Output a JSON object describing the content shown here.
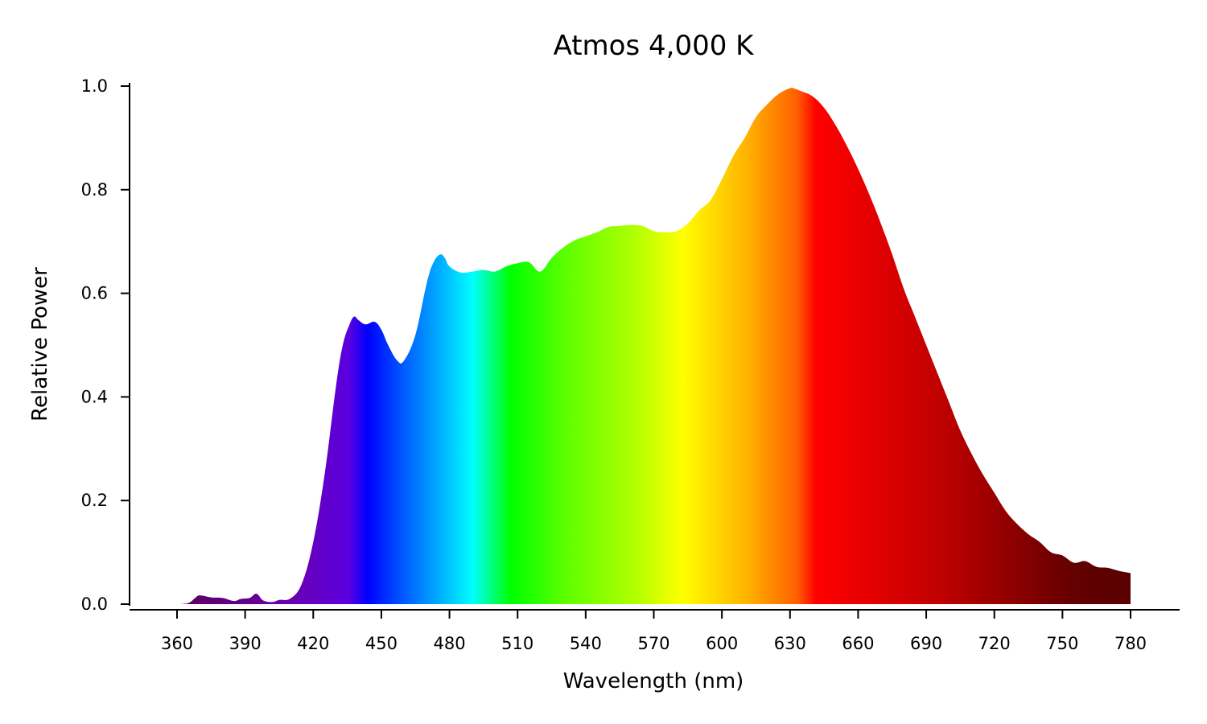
{
  "chart_data": {
    "type": "area",
    "title": "Atmos 4,000 K",
    "xlabel": "Wavelength (nm)",
    "ylabel": "Relative Power",
    "xlim": [
      346,
      798
    ],
    "ylim": [
      0,
      1.0
    ],
    "x_ticks": [
      360,
      390,
      420,
      450,
      480,
      510,
      540,
      570,
      600,
      630,
      660,
      690,
      720,
      750,
      780
    ],
    "x_tick_labels": [
      "360",
      "390",
      "420",
      "450",
      "480",
      "510",
      "540",
      "570",
      "600",
      "630",
      "660",
      "690",
      "720",
      "750",
      "780"
    ],
    "y_ticks": [
      0.0,
      0.2,
      0.4,
      0.6,
      0.8,
      1.0
    ],
    "y_tick_labels": [
      "0.0",
      "0.2",
      "0.4",
      "0.6",
      "0.8",
      "1.0"
    ],
    "grid": false,
    "fill": "visible-spectrum gradient (violet to dark red)",
    "series": [
      {
        "x": [
          360,
          365,
          368,
          370,
          375,
          380,
          385,
          388,
          392,
          395,
          398,
          402,
          405,
          410,
          415,
          420,
          425,
          430,
          433,
          436,
          438,
          440,
          443,
          447,
          450,
          453,
          457,
          460,
          465,
          470,
          473,
          476,
          478,
          480,
          485,
          490,
          495,
          500,
          505,
          510,
          515,
          520,
          525,
          530,
          535,
          540,
          545,
          550,
          555,
          560,
          565,
          570,
          575,
          580,
          585,
          590,
          595,
          600,
          605,
          610,
          615,
          620,
          625,
          630,
          632,
          635,
          640,
          645,
          650,
          655,
          660,
          665,
          670,
          675,
          680,
          685,
          690,
          695,
          700,
          705,
          710,
          715,
          720,
          725,
          730,
          735,
          740,
          745,
          750,
          755,
          760,
          765,
          770,
          775,
          780
        ],
        "y": [
          0.0,
          0.002,
          0.012,
          0.017,
          0.013,
          0.012,
          0.006,
          0.01,
          0.012,
          0.02,
          0.007,
          0.004,
          0.008,
          0.011,
          0.04,
          0.12,
          0.25,
          0.42,
          0.5,
          0.54,
          0.555,
          0.548,
          0.54,
          0.545,
          0.53,
          0.5,
          0.47,
          0.47,
          0.52,
          0.62,
          0.66,
          0.675,
          0.668,
          0.652,
          0.64,
          0.642,
          0.645,
          0.642,
          0.652,
          0.658,
          0.66,
          0.642,
          0.668,
          0.688,
          0.702,
          0.71,
          0.718,
          0.728,
          0.73,
          0.732,
          0.73,
          0.72,
          0.718,
          0.72,
          0.735,
          0.76,
          0.78,
          0.82,
          0.865,
          0.9,
          0.94,
          0.965,
          0.985,
          0.996,
          0.995,
          0.99,
          0.98,
          0.958,
          0.925,
          0.885,
          0.84,
          0.79,
          0.735,
          0.675,
          0.61,
          0.555,
          0.5,
          0.445,
          0.39,
          0.335,
          0.29,
          0.25,
          0.215,
          0.18,
          0.155,
          0.135,
          0.12,
          0.1,
          0.094,
          0.08,
          0.083,
          0.072,
          0.07,
          0.064,
          0.06
        ]
      }
    ]
  }
}
